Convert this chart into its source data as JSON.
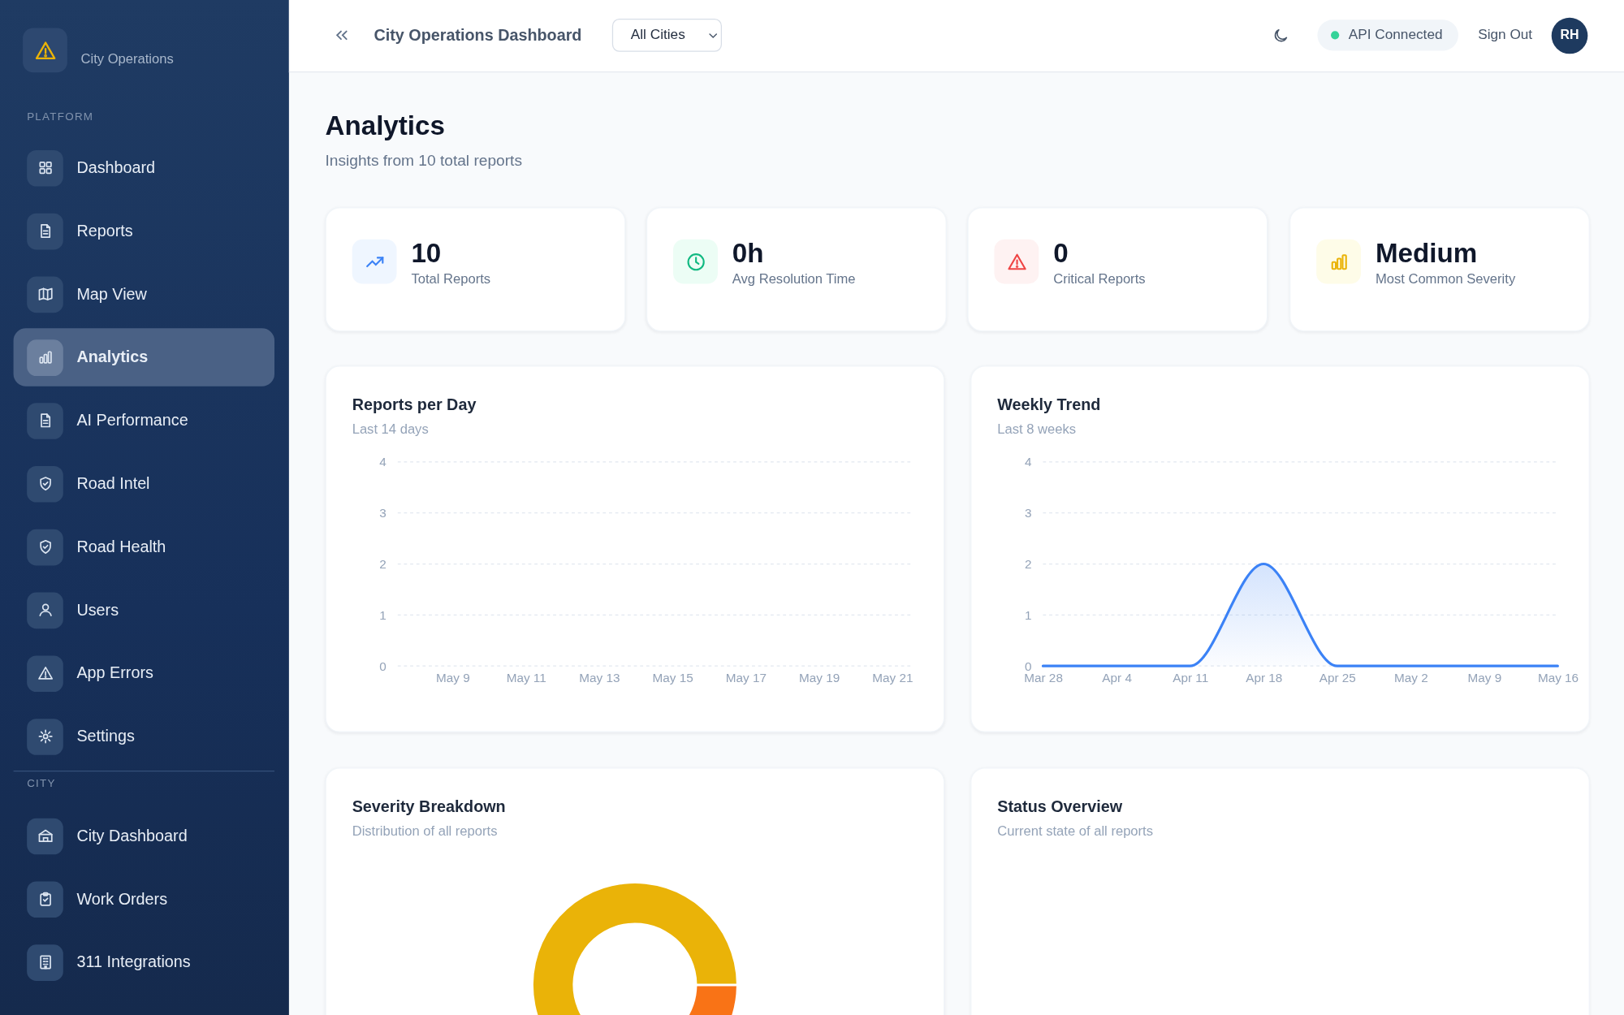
{
  "chart_data": [
    {
      "type": "other",
      "title": "Analytics",
      "subtitle": "Insights from 10 total reports",
      "annotations": [
        "City Operations",
        "PLATFORM",
        "Dashboard",
        "Reports",
        "Map View",
        "Analytics",
        "AI Performance",
        "Road Intel",
        "Road Health",
        "Users",
        "App Errors",
        "Settings",
        "CITY",
        "City Dashboard",
        "Work Orders",
        "311 Integrations",
        "City Operations Dashboard",
        "All Cities",
        "API Connected",
        "Sign Out",
        "RH",
        "10",
        "Total Reports",
        "0h",
        "Avg Resolution Time",
        "0",
        "Critical Reports",
        "Medium",
        "Most Common Severity"
      ]
    },
    {
      "type": "bar",
      "title": "Reports per Day",
      "subtitle": "Last 14 days",
      "categories": [
        null,
        "May 9",
        null,
        "May 11",
        null,
        "May 13",
        null,
        "May 15",
        null,
        "May 17",
        null,
        "May 19",
        null,
        "May 21"
      ],
      "values": [
        null,
        null,
        null,
        null,
        null,
        null,
        null,
        null,
        null,
        null,
        null,
        null,
        null,
        null
      ],
      "ylim": [
        0,
        4
      ],
      "yticks": [
        0,
        1,
        2,
        3,
        4
      ],
      "grid": "y"
    },
    {
      "type": "area",
      "title": "Weekly Trend",
      "subtitle": "Last 8 weeks",
      "categories": [
        "Mar 28",
        "Apr 4",
        "Apr 11",
        "Apr 18",
        "Apr 25",
        "May 2",
        "May 9",
        "May 16"
      ],
      "series": [
        {
          "color": "#3b82f6",
          "values": [
            0,
            0,
            0,
            2,
            0,
            0,
            0,
            0
          ]
        }
      ],
      "ylim": [
        0,
        4
      ],
      "yticks": [
        0,
        1,
        2,
        3,
        4
      ],
      "grid": "y"
    },
    {
      "type": "donut",
      "title": "Severity Breakdown",
      "subtitle": "Distribution of all reports",
      "categories": [
        null,
        null
      ],
      "values": [
        80,
        20
      ],
      "colors": [
        "#eab308",
        "#f97316"
      ]
    },
    {
      "type": "other",
      "title": "Status Overview",
      "subtitle": "Current state of all reports"
    }
  ]
}
